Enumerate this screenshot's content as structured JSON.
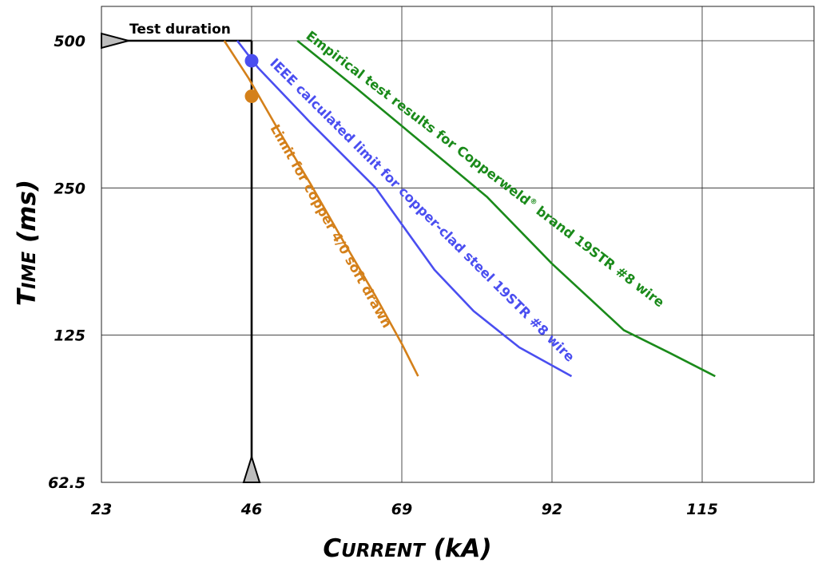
{
  "chart_data": {
    "type": "line",
    "x_axis": {
      "title_main": "C",
      "title_caps": "URRENT",
      "title_unit": " (kA)",
      "ticks": [
        23,
        46,
        69,
        92,
        115
      ],
      "tick_labels": [
        "23",
        "46",
        "69",
        "92",
        "115"
      ],
      "range": [
        23,
        134
      ]
    },
    "y_axis": {
      "title_main": "T",
      "title_caps": "IME",
      "title_unit": " (ms)",
      "scale": "log",
      "ticks": [
        62.5,
        125,
        250,
        500
      ],
      "tick_labels": [
        "62.5",
        "125",
        "250",
        "500"
      ],
      "range": [
        62.5,
        590
      ]
    },
    "grid": true,
    "series": [
      {
        "name": "Limit for copper 4/0 soft drawn",
        "color": "#d4801a",
        "x": [
          41.8,
          45.5,
          50,
          55,
          60,
          65,
          69,
          71.5
        ],
        "y": [
          500,
          420,
          330,
          255,
          195,
          150,
          120,
          103
        ]
      },
      {
        "name": "IEEE calculated limit for copper-clad steel 19STR #8 wire",
        "color": "#4a4ef0",
        "x": [
          43.8,
          47,
          55,
          65,
          74,
          80,
          87,
          95
        ],
        "y": [
          500,
          440,
          340,
          250,
          170,
          140,
          118,
          103
        ]
      },
      {
        "name": "Empirical test results for Copperweld® brand 19STR #8 wire",
        "color": "#1a8a1a",
        "x": [
          53,
          62,
          72,
          82,
          92,
          103,
          110,
          117
        ],
        "y": [
          500,
          400,
          310,
          240,
          175,
          128,
          115,
          103
        ]
      }
    ],
    "markers": [
      {
        "series": "IEEE calculated limit for copper-clad steel 19STR #8 wire",
        "x": 46,
        "y": 455,
        "color": "#4a4ef0"
      },
      {
        "series": "Limit for copper 4/0 soft drawn",
        "x": 46,
        "y": 385,
        "color": "#d4801a"
      }
    ],
    "reference_lines": [
      {
        "label": "Test duration",
        "axis": "y",
        "value": 500,
        "x_from": 23,
        "x_to": 46
      },
      {
        "label": "",
        "axis": "x",
        "value": 46,
        "y_from": 62.5,
        "y_to": 500
      }
    ],
    "labels": {
      "test_duration": "Test duration",
      "copper": "Limit for copper 4/0 soft drawn",
      "ieee": "IEEE calculated limit for copper-clad steel 19STR #8 wire",
      "empirical_a": "Empirical test results for Copperweld",
      "empirical_reg": "®",
      "empirical_b": " brand 19STR #8 wire"
    }
  }
}
